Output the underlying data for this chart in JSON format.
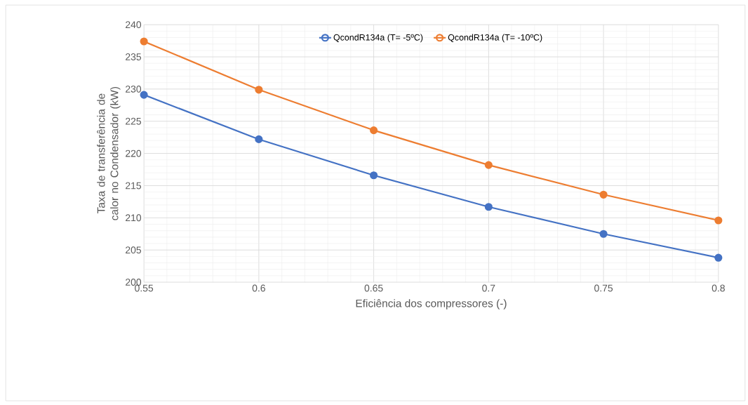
{
  "chart_data": {
    "type": "line",
    "xlabel": "Eficiência dos compressores (-)",
    "ylabel": "Taxa de transferência de calor no Condensador (kW)",
    "x": [
      0.55,
      0.6,
      0.65,
      0.7,
      0.75,
      0.8
    ],
    "series": [
      {
        "name": "QcondR134a (T= -5ºC)",
        "color": "#4472c4",
        "values": [
          229.1,
          222.2,
          216.6,
          211.7,
          207.5,
          203.8
        ]
      },
      {
        "name": "QcondR134a (T= -10ºC)",
        "color": "#ed7d31",
        "values": [
          237.4,
          229.9,
          223.6,
          218.2,
          213.6,
          209.6
        ]
      }
    ],
    "xlim": [
      0.55,
      0.8
    ],
    "xticks": [
      0.55,
      0.6,
      0.65,
      0.7,
      0.75,
      0.8
    ],
    "ylim": [
      200,
      240
    ],
    "yticks": [
      200,
      205,
      210,
      215,
      220,
      225,
      230,
      235,
      240
    ],
    "grid": true,
    "legend": "top",
    "marker": "circle",
    "line_style": "solid"
  }
}
